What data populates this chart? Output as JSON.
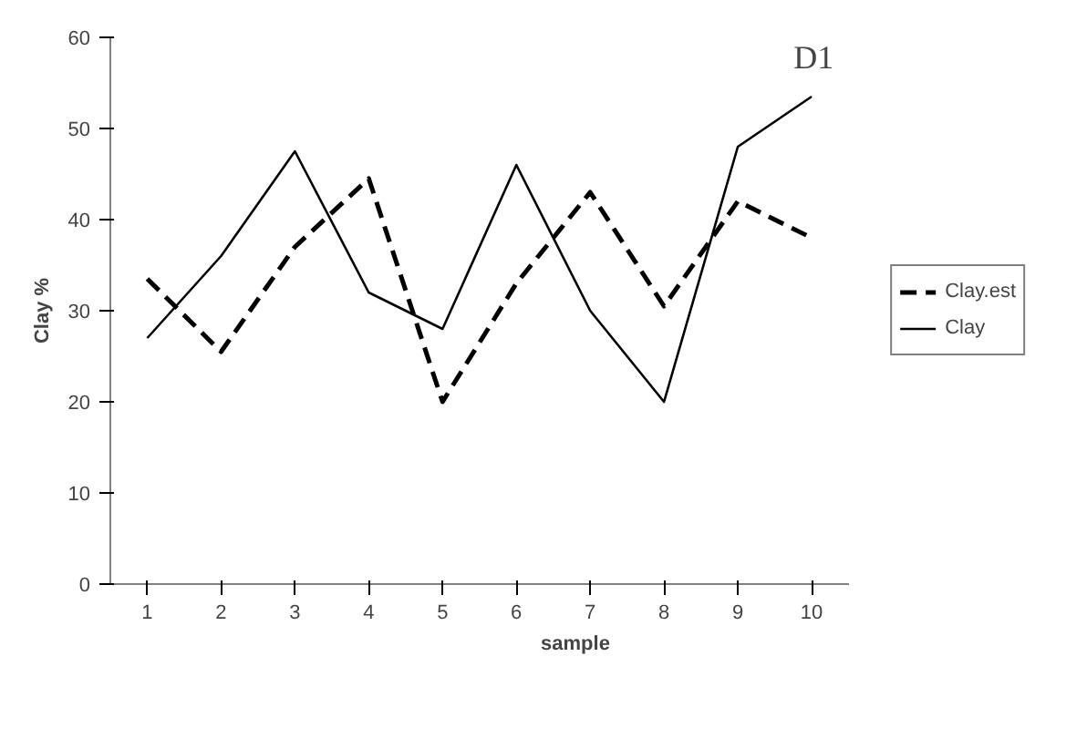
{
  "chart_data": {
    "type": "line",
    "xlabel": "sample",
    "ylabel": "Clay %",
    "annotations": [
      "D1"
    ],
    "categories": [
      "1",
      "2",
      "3",
      "4",
      "5",
      "6",
      "7",
      "8",
      "9",
      "10"
    ],
    "series": [
      {
        "name": "Clay.est",
        "color": "#000000",
        "line_style": "dashed",
        "values": [
          33.5,
          25.5,
          37,
          44.5,
          20,
          33,
          43,
          30.5,
          42,
          38
        ]
      },
      {
        "name": "Clay",
        "color": "#000000",
        "line_style": "solid",
        "values": [
          27,
          36,
          47.5,
          32,
          28,
          46,
          30,
          20,
          48,
          53.5
        ]
      }
    ],
    "ylim": [
      0,
      60
    ],
    "yticks": [
      0,
      10,
      20,
      30,
      40,
      50,
      60
    ],
    "legend": "right"
  }
}
